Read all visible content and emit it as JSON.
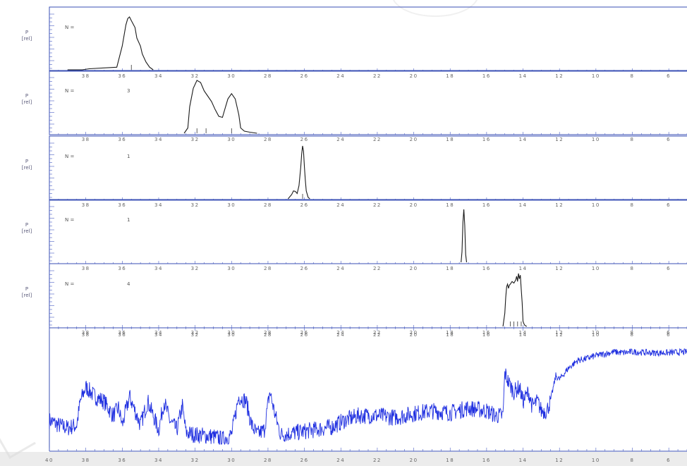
{
  "chart_data": [
    {
      "type": "line",
      "ylabel": [
        "P",
        "[rel]"
      ],
      "n_label": "N =",
      "n_value": "",
      "xlim": [
        40,
        5
      ],
      "ticks": [
        "38",
        "36",
        "34",
        "32",
        "30",
        "28",
        "26",
        "24",
        "22",
        "20",
        "18",
        "16",
        "14",
        "12",
        "10",
        "8",
        "6"
      ],
      "series": [
        {
          "x": [
            39.0,
            38.2,
            37.8,
            36.3,
            36.0,
            35.8,
            35.7,
            35.6,
            35.5,
            35.3,
            35.2,
            35.0,
            34.9,
            34.7,
            34.5,
            34.3
          ],
          "y": [
            0.0,
            0.0,
            0.02,
            0.05,
            0.45,
            0.85,
            0.97,
            1.0,
            0.93,
            0.8,
            0.6,
            0.45,
            0.3,
            0.15,
            0.05,
            0.0
          ]
        }
      ],
      "markers": [
        35.5
      ]
    },
    {
      "type": "line",
      "ylabel": [
        "P",
        "[rel]"
      ],
      "n_label": "N =",
      "n_value": "3",
      "xlim": [
        40,
        5
      ],
      "ticks": [
        "38",
        "36",
        "34",
        "32",
        "30",
        "28",
        "26",
        "24",
        "22",
        "20",
        "18",
        "16",
        "14",
        "12",
        "10",
        "8",
        "6"
      ],
      "series": [
        {
          "x": [
            32.6,
            32.4,
            32.3,
            32.1,
            31.9,
            31.7,
            31.5,
            31.3,
            31.1,
            30.9,
            30.7,
            30.5,
            30.4,
            30.2,
            30.0,
            29.8,
            29.6,
            29.5,
            29.3,
            29.0,
            28.6
          ],
          "y": [
            0.0,
            0.1,
            0.5,
            0.85,
            1.0,
            0.96,
            0.8,
            0.7,
            0.6,
            0.45,
            0.32,
            0.3,
            0.42,
            0.65,
            0.75,
            0.65,
            0.35,
            0.1,
            0.04,
            0.02,
            0.0
          ]
        }
      ],
      "markers": [
        31.9,
        31.4,
        30.0
      ]
    },
    {
      "type": "line",
      "ylabel": [
        "P",
        "[rel]"
      ],
      "n_label": "N =",
      "n_value": "1",
      "xlim": [
        40,
        5
      ],
      "ticks": [
        "38",
        "36",
        "34",
        "32",
        "30",
        "28",
        "26",
        "24",
        "22",
        "20",
        "18",
        "16",
        "14",
        "12",
        "10",
        "8",
        "6"
      ],
      "series": [
        {
          "x": [
            26.9,
            26.7,
            26.6,
            26.5,
            26.4,
            26.3,
            26.2,
            26.15,
            26.1,
            26.05,
            26.0,
            25.95,
            25.9,
            25.8,
            25.7
          ],
          "y": [
            0.0,
            0.08,
            0.15,
            0.14,
            0.1,
            0.25,
            0.6,
            0.85,
            1.0,
            0.9,
            0.6,
            0.35,
            0.15,
            0.03,
            0.0
          ]
        }
      ],
      "markers": [
        26.1
      ]
    },
    {
      "type": "line",
      "ylabel": [
        "P",
        "[rel]"
      ],
      "n_label": "N =",
      "n_value": "1",
      "xlim": [
        40,
        5
      ],
      "ticks": [
        "38",
        "36",
        "34",
        "32",
        "30",
        "28",
        "26",
        "24",
        "22",
        "20",
        "18",
        "16",
        "14",
        "12",
        "10",
        "8",
        "6"
      ],
      "series": [
        {
          "x": [
            17.4,
            17.35,
            17.3,
            17.25,
            17.2,
            17.15,
            17.1
          ],
          "y": [
            0.0,
            0.2,
            0.75,
            1.0,
            0.7,
            0.15,
            0.0
          ]
        }
      ],
      "markers": []
    },
    {
      "type": "line",
      "ylabel": [
        "P",
        "[rel]"
      ],
      "n_label": "N =",
      "n_value": "4",
      "xlim": [
        40,
        5
      ],
      "ticks": [
        "38",
        "36",
        "34",
        "32",
        "30",
        "28",
        "26",
        "24",
        "22",
        "20",
        "18",
        "16",
        "14",
        "12",
        "10",
        "8",
        "6"
      ],
      "series": [
        {
          "x": [
            15.1,
            15.0,
            14.95,
            14.9,
            14.85,
            14.8,
            14.75,
            14.7,
            14.6,
            14.5,
            14.4,
            14.35,
            14.3,
            14.25,
            14.2,
            14.15,
            14.1,
            14.05,
            14.0,
            13.95,
            13.9,
            13.8
          ],
          "y": [
            0.0,
            0.25,
            0.55,
            0.75,
            0.8,
            0.72,
            0.78,
            0.8,
            0.85,
            0.82,
            0.88,
            0.95,
            0.85,
            1.0,
            0.9,
            0.97,
            0.7,
            0.45,
            0.1,
            0.05,
            0.02,
            0.0
          ]
        }
      ],
      "markers": [
        14.7,
        14.5,
        14.3,
        14.1
      ]
    },
    {
      "type": "line",
      "ticks": [
        "40",
        "38",
        "36",
        "34",
        "32",
        "30",
        "28",
        "26",
        "24",
        "22",
        "20",
        "18",
        "16",
        "14",
        "12",
        "10",
        "8",
        "6"
      ],
      "xlim": [
        40,
        5
      ],
      "color": "#1f2fe0",
      "profile": [
        {
          "x": 40.0,
          "y": 0.25
        },
        {
          "x": 39.5,
          "y": 0.2
        },
        {
          "x": 39.0,
          "y": 0.17
        },
        {
          "x": 38.5,
          "y": 0.2
        },
        {
          "x": 38.3,
          "y": 0.45
        },
        {
          "x": 38.0,
          "y": 0.6
        },
        {
          "x": 37.5,
          "y": 0.5
        },
        {
          "x": 37.0,
          "y": 0.45
        },
        {
          "x": 36.5,
          "y": 0.3
        },
        {
          "x": 36.2,
          "y": 0.38
        },
        {
          "x": 36.0,
          "y": 0.2
        },
        {
          "x": 35.6,
          "y": 0.5
        },
        {
          "x": 35.3,
          "y": 0.35
        },
        {
          "x": 35.0,
          "y": 0.2
        },
        {
          "x": 34.6,
          "y": 0.45
        },
        {
          "x": 34.3,
          "y": 0.3
        },
        {
          "x": 34.0,
          "y": 0.15
        },
        {
          "x": 33.7,
          "y": 0.45
        },
        {
          "x": 33.4,
          "y": 0.25
        },
        {
          "x": 33.0,
          "y": 0.15
        },
        {
          "x": 32.7,
          "y": 0.4
        },
        {
          "x": 32.5,
          "y": 0.12
        },
        {
          "x": 32.0,
          "y": 0.1
        },
        {
          "x": 31.0,
          "y": 0.08
        },
        {
          "x": 30.5,
          "y": 0.05
        },
        {
          "x": 30.0,
          "y": 0.1
        },
        {
          "x": 29.6,
          "y": 0.5
        },
        {
          "x": 29.2,
          "y": 0.45
        },
        {
          "x": 28.9,
          "y": 0.2
        },
        {
          "x": 28.6,
          "y": 0.1
        },
        {
          "x": 28.2,
          "y": 0.15
        },
        {
          "x": 27.9,
          "y": 0.55
        },
        {
          "x": 27.6,
          "y": 0.3
        },
        {
          "x": 27.3,
          "y": 0.1
        },
        {
          "x": 26.5,
          "y": 0.12
        },
        {
          "x": 25.5,
          "y": 0.15
        },
        {
          "x": 24.5,
          "y": 0.18
        },
        {
          "x": 23.8,
          "y": 0.25
        },
        {
          "x": 23.0,
          "y": 0.3
        },
        {
          "x": 22.0,
          "y": 0.3
        },
        {
          "x": 21.0,
          "y": 0.28
        },
        {
          "x": 20.0,
          "y": 0.32
        },
        {
          "x": 19.0,
          "y": 0.35
        },
        {
          "x": 18.0,
          "y": 0.33
        },
        {
          "x": 17.0,
          "y": 0.38
        },
        {
          "x": 16.0,
          "y": 0.35
        },
        {
          "x": 15.5,
          "y": 0.3
        },
        {
          "x": 15.1,
          "y": 0.3
        },
        {
          "x": 15.0,
          "y": 0.75
        },
        {
          "x": 14.8,
          "y": 0.65
        },
        {
          "x": 14.5,
          "y": 0.55
        },
        {
          "x": 14.2,
          "y": 0.6
        },
        {
          "x": 14.0,
          "y": 0.45
        },
        {
          "x": 13.7,
          "y": 0.55
        },
        {
          "x": 13.5,
          "y": 0.4
        },
        {
          "x": 13.2,
          "y": 0.45
        },
        {
          "x": 13.0,
          "y": 0.35
        },
        {
          "x": 12.7,
          "y": 0.35
        },
        {
          "x": 12.5,
          "y": 0.45
        },
        {
          "x": 12.2,
          "y": 0.72
        },
        {
          "x": 12.0,
          "y": 0.68
        },
        {
          "x": 11.5,
          "y": 0.8
        },
        {
          "x": 11.0,
          "y": 0.88
        },
        {
          "x": 10.5,
          "y": 0.9
        },
        {
          "x": 10.0,
          "y": 0.93
        },
        {
          "x": 9.5,
          "y": 0.95
        },
        {
          "x": 9.0,
          "y": 0.97
        },
        {
          "x": 8.5,
          "y": 0.96
        },
        {
          "x": 8.0,
          "y": 0.97
        },
        {
          "x": 7.0,
          "y": 0.96
        },
        {
          "x": 6.0,
          "y": 0.96
        },
        {
          "x": 5.0,
          "y": 0.97
        }
      ]
    }
  ]
}
